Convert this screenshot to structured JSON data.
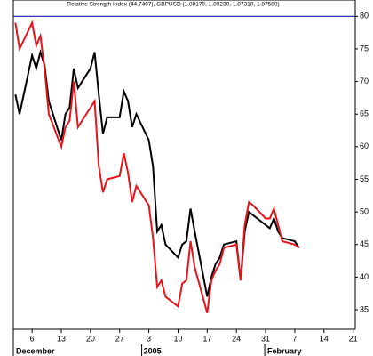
{
  "chart_data": {
    "type": "line",
    "title": "Relative Strength Index (44.7497), GBPUSD (1.88170, 1.89230, 1.87310, 1.87580)",
    "x": [
      2,
      3,
      6,
      7,
      8,
      9,
      10,
      13,
      14,
      15,
      16,
      17,
      20,
      21,
      22,
      23,
      24,
      27,
      28,
      29,
      30,
      31,
      34,
      35,
      36,
      37,
      38,
      41,
      42,
      43,
      44,
      45,
      48,
      49,
      50,
      51,
      52,
      55,
      56,
      57,
      58,
      59,
      62,
      63,
      64,
      65,
      66,
      69,
      70
    ],
    "series": [
      {
        "name": "RSI",
        "color": "#000000",
        "values": [
          68,
          65,
          74,
          72,
          74.5,
          72.5,
          67,
          61,
          65,
          66,
          72,
          69,
          72,
          74.5,
          68,
          62,
          64.5,
          64.5,
          68.5,
          67,
          63,
          65,
          61,
          57,
          47,
          48,
          45,
          43,
          45,
          45.5,
          50.5,
          47,
          37,
          40,
          42,
          43,
          45,
          45.5,
          39.5,
          47,
          50,
          49.5,
          48,
          47.5,
          49,
          47,
          46,
          45.5,
          44.5
        ]
      },
      {
        "name": "GBPUSD",
        "color": "#e8141c",
        "values": [
          79,
          75,
          79,
          75.5,
          77,
          72,
          65,
          60,
          63,
          64,
          70,
          63,
          66,
          67,
          57,
          53,
          55,
          55.5,
          59,
          56,
          51.5,
          54,
          51,
          46,
          38.5,
          39.5,
          37,
          35.5,
          39,
          39.5,
          45.5,
          41.5,
          34.5,
          39.5,
          41,
          42,
          44.5,
          45,
          39.5,
          48,
          51.5,
          51,
          49,
          49,
          50.5,
          48,
          45.5,
          45,
          44.5
        ]
      }
    ],
    "reference_line": {
      "value": 80,
      "color": "#1a1aa6"
    },
    "xlim": [
      1.5,
      83.5
    ],
    "xticks": [
      6,
      13,
      20,
      27,
      {
        "value": 34,
        "label": "3"
      },
      {
        "value": 41,
        "label": "10"
      },
      {
        "value": 48,
        "label": "17"
      },
      {
        "value": 55,
        "label": "24"
      },
      {
        "value": 62,
        "label": "31"
      },
      {
        "value": 69,
        "label": "7"
      },
      {
        "value": 76,
        "label": "14"
      },
      {
        "value": 83,
        "label": "21"
      }
    ],
    "x_groups": [
      "December",
      "2005",
      "February"
    ],
    "ylim": [
      32,
      82.5
    ],
    "yticks": [
      35,
      40,
      45,
      50,
      55,
      60,
      65,
      70,
      75,
      80
    ],
    "grid": false
  }
}
